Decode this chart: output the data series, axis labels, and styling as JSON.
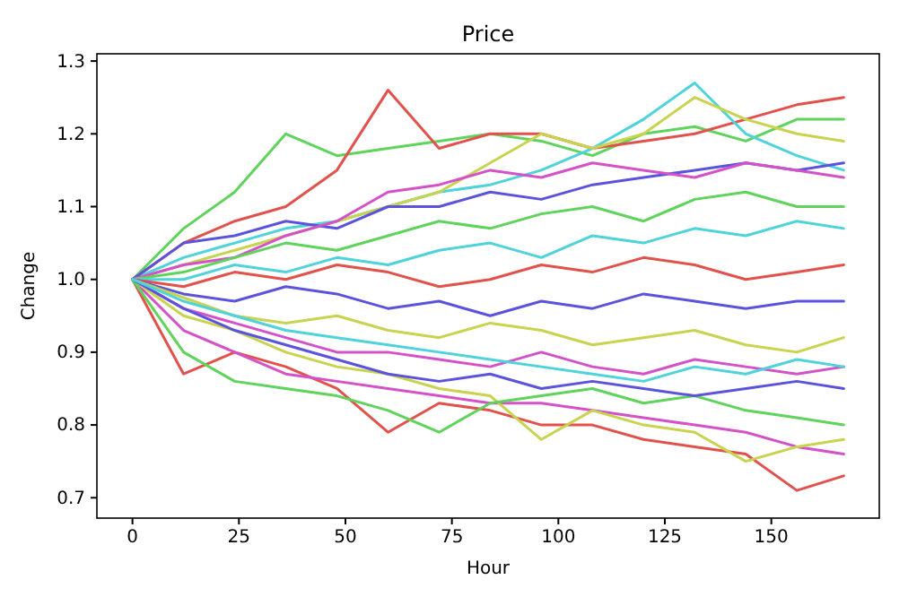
{
  "chart_data": {
    "type": "line",
    "title": "Price",
    "xlabel": "Hour",
    "ylabel": "Change",
    "x": [
      0,
      12,
      24,
      36,
      48,
      60,
      72,
      84,
      96,
      108,
      120,
      132,
      144,
      156,
      167
    ],
    "xlim": [
      -8.35,
      175.35
    ],
    "ylim": [
      0.672,
      1.31
    ],
    "xticks": [
      0,
      25,
      50,
      75,
      100,
      125,
      150
    ],
    "yticks": [
      {
        "value": 0.7,
        "label": "0.7"
      },
      {
        "value": 0.8,
        "label": "0.8"
      },
      {
        "value": 0.9,
        "label": "0.9"
      },
      {
        "value": 1.0,
        "label": "1.0"
      },
      {
        "value": 1.1,
        "label": "1.1"
      },
      {
        "value": 1.2,
        "label": "1.2"
      },
      {
        "value": 1.3,
        "label": "1.3"
      }
    ],
    "grid": false,
    "marker": "none",
    "line_style": "solid",
    "series": [
      {
        "color": "#5fd35b",
        "values": [
          1.0,
          1.07,
          1.12,
          1.2,
          1.17,
          1.18,
          1.19,
          1.2,
          1.19,
          1.17,
          1.2,
          1.21,
          1.19,
          1.22,
          1.22
        ]
      },
      {
        "color": "#e0524b",
        "values": [
          1.0,
          1.05,
          1.08,
          1.1,
          1.15,
          1.26,
          1.18,
          1.2,
          1.2,
          1.18,
          1.19,
          1.2,
          1.22,
          1.24,
          1.25
        ]
      },
      {
        "color": "#4fd3db",
        "values": [
          1.0,
          1.03,
          1.05,
          1.07,
          1.08,
          1.1,
          1.12,
          1.13,
          1.15,
          1.18,
          1.22,
          1.27,
          1.2,
          1.17,
          1.15
        ]
      },
      {
        "color": "#c8d34f",
        "values": [
          1.0,
          1.02,
          1.04,
          1.06,
          1.08,
          1.1,
          1.12,
          1.16,
          1.2,
          1.18,
          1.2,
          1.25,
          1.22,
          1.2,
          1.19
        ]
      },
      {
        "color": "#5b54db",
        "values": [
          1.0,
          1.05,
          1.06,
          1.08,
          1.07,
          1.1,
          1.1,
          1.12,
          1.11,
          1.13,
          1.14,
          1.15,
          1.16,
          1.15,
          1.16
        ]
      },
      {
        "color": "#d352c8",
        "values": [
          1.0,
          1.02,
          1.03,
          1.06,
          1.08,
          1.12,
          1.13,
          1.15,
          1.14,
          1.16,
          1.15,
          1.14,
          1.16,
          1.15,
          1.14
        ]
      },
      {
        "color": "#5fd35b",
        "values": [
          1.0,
          1.01,
          1.03,
          1.05,
          1.04,
          1.06,
          1.08,
          1.07,
          1.09,
          1.1,
          1.08,
          1.11,
          1.12,
          1.1,
          1.1
        ]
      },
      {
        "color": "#4fd3db",
        "values": [
          1.0,
          1.0,
          1.02,
          1.01,
          1.03,
          1.02,
          1.04,
          1.05,
          1.03,
          1.06,
          1.05,
          1.07,
          1.06,
          1.08,
          1.07
        ]
      },
      {
        "color": "#e0524b",
        "values": [
          1.0,
          0.99,
          1.01,
          1.0,
          1.02,
          1.01,
          0.99,
          1.0,
          1.02,
          1.01,
          1.03,
          1.02,
          1.0,
          1.01,
          1.02
        ]
      },
      {
        "color": "#5b54db",
        "values": [
          1.0,
          0.98,
          0.97,
          0.99,
          0.98,
          0.96,
          0.97,
          0.95,
          0.97,
          0.96,
          0.98,
          0.97,
          0.96,
          0.97,
          0.97
        ]
      },
      {
        "color": "#c8d34f",
        "values": [
          1.0,
          0.975,
          0.95,
          0.94,
          0.95,
          0.93,
          0.92,
          0.94,
          0.93,
          0.91,
          0.92,
          0.93,
          0.91,
          0.9,
          0.92
        ]
      },
      {
        "color": "#d352c8",
        "values": [
          1.0,
          0.96,
          0.94,
          0.92,
          0.9,
          0.9,
          0.89,
          0.88,
          0.9,
          0.88,
          0.87,
          0.89,
          0.88,
          0.87,
          0.88
        ]
      },
      {
        "color": "#e0524b",
        "values": [
          1.0,
          0.87,
          0.9,
          0.88,
          0.85,
          0.79,
          0.83,
          0.82,
          0.8,
          0.8,
          0.78,
          0.77,
          0.76,
          0.71,
          0.73
        ]
      },
      {
        "color": "#d352c8",
        "values": [
          1.0,
          0.93,
          0.9,
          0.87,
          0.86,
          0.85,
          0.84,
          0.83,
          0.83,
          0.82,
          0.81,
          0.8,
          0.79,
          0.77,
          0.76
        ]
      },
      {
        "color": "#c8d34f",
        "values": [
          1.0,
          0.95,
          0.93,
          0.9,
          0.88,
          0.87,
          0.85,
          0.84,
          0.78,
          0.82,
          0.8,
          0.79,
          0.75,
          0.77,
          0.78
        ]
      },
      {
        "color": "#5fd35b",
        "values": [
          1.0,
          0.9,
          0.86,
          0.85,
          0.84,
          0.82,
          0.79,
          0.83,
          0.84,
          0.85,
          0.83,
          0.84,
          0.82,
          0.81,
          0.8
        ]
      },
      {
        "color": "#5b54db",
        "values": [
          1.0,
          0.96,
          0.93,
          0.91,
          0.89,
          0.87,
          0.86,
          0.87,
          0.85,
          0.86,
          0.85,
          0.84,
          0.85,
          0.86,
          0.85
        ]
      },
      {
        "color": "#4fd3db",
        "values": [
          1.0,
          0.97,
          0.95,
          0.93,
          0.92,
          0.91,
          0.9,
          0.89,
          0.88,
          0.87,
          0.86,
          0.88,
          0.87,
          0.89,
          0.88
        ]
      }
    ]
  }
}
